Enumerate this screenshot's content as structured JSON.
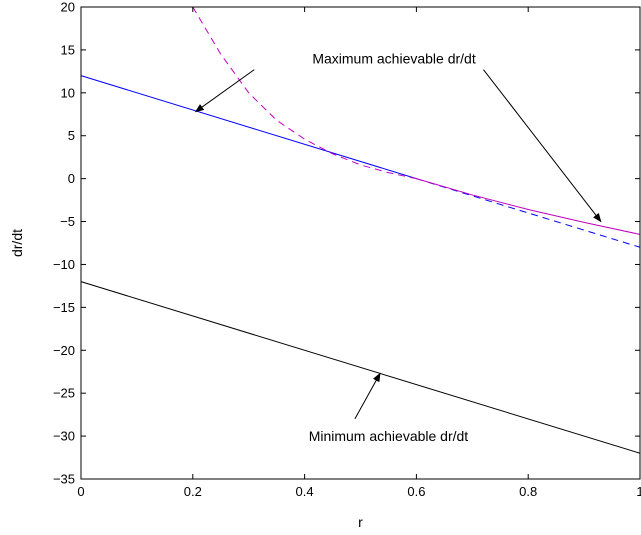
{
  "chart_data": {
    "type": "line",
    "title": "",
    "xlabel": "r",
    "ylabel": "dr/dt",
    "xlim": [
      0,
      1
    ],
    "ylim": [
      -35,
      20
    ],
    "grid": false,
    "xticks": [
      0,
      0.2,
      0.4,
      0.6,
      0.8,
      1
    ],
    "xtick_labels": [
      "0",
      "0.2",
      "0.4",
      "0.6",
      "0.8",
      "1"
    ],
    "yticks": [
      20,
      15,
      10,
      5,
      0,
      -5,
      -10,
      -15,
      -20,
      -25,
      -30,
      -35
    ],
    "ytick_labels": [
      "20",
      "15",
      "10",
      "5",
      "0",
      "−5",
      "−10",
      "−15",
      "−20",
      "−25",
      "−30",
      "−35"
    ],
    "series": [
      {
        "color": "#0000ff",
        "style": "solid",
        "x": [
          0,
          0.6
        ],
        "y": [
          12,
          0
        ]
      },
      {
        "color": "#0000ff",
        "style": "dashed",
        "x": [
          0.6,
          1.0
        ],
        "y": [
          0,
          -8
        ]
      },
      {
        "color": "#bf00bf",
        "style": "dashed",
        "x": [
          0.2,
          0.25,
          0.3,
          0.35,
          0.4,
          0.45,
          0.5,
          0.55,
          0.6
        ],
        "y": [
          20,
          14.5,
          10.0,
          6.8,
          4.6,
          2.9,
          1.6,
          0.7,
          0
        ]
      },
      {
        "color": "#bf00bf",
        "style": "solid",
        "x": [
          0.6,
          0.7,
          0.8,
          0.9,
          1.0
        ],
        "y": [
          0,
          -1.9,
          -3.6,
          -5.1,
          -6.5
        ]
      },
      {
        "color": "#000000",
        "style": "solid",
        "x": [
          0,
          1.0
        ],
        "y": [
          -12,
          -32
        ]
      }
    ],
    "annotations": [
      {
        "text": "Maximum achievable dr/dt",
        "text_x": 0.56,
        "text_y": 14.0,
        "arrows": [
          {
            "from_x": 0.31,
            "from_y": 12.7,
            "to_x": 0.205,
            "to_y": 7.8
          },
          {
            "from_x": 0.72,
            "from_y": 12.7,
            "to_x": 0.93,
            "to_y": -5.0
          }
        ]
      },
      {
        "text": "Minimum achievable dr/dt",
        "text_x": 0.55,
        "text_y": -30.0,
        "arrows": [
          {
            "from_x": 0.49,
            "from_y": -28.0,
            "to_x": 0.535,
            "to_y": -22.7
          }
        ]
      }
    ]
  }
}
